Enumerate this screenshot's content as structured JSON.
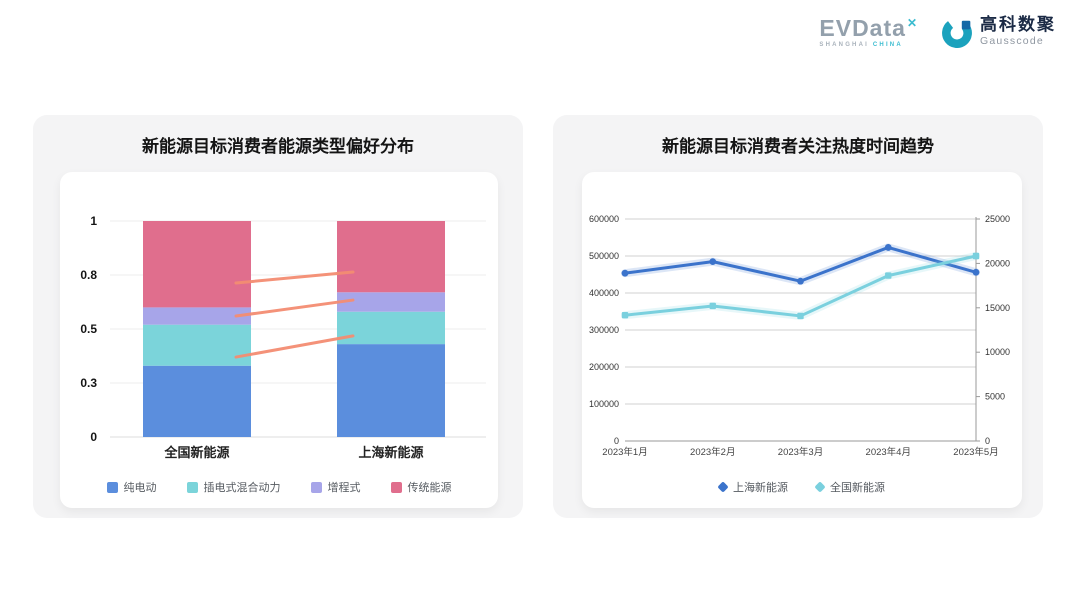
{
  "header": {
    "evdata": {
      "brand": "EVData",
      "mark": "✕",
      "tagline_left": "SHANGHAI",
      "tagline_right": "CHINA"
    },
    "gausscode": {
      "icon": "gausscode-g-icon",
      "title_cn": "高科数聚",
      "title_en": "Gausscode"
    }
  },
  "colors": {
    "card_background": "#f4f4f5",
    "inner_background": "#ffffff",
    "grid_line": "#ececec",
    "axis_line": "#9a9a9a",
    "connector": "#f48d72"
  },
  "chart_data": [
    {
      "type": "bar",
      "stacked": true,
      "title": "新能源目标消费者能源类型偏好分布",
      "categories": [
        "全国新能源",
        "上海新能源"
      ],
      "series": [
        {
          "name": "纯电动",
          "color": "#5b8edd",
          "values": [
            0.33,
            0.43
          ]
        },
        {
          "name": "插电式混合动力",
          "color": "#7bd4da",
          "values": [
            0.19,
            0.15
          ]
        },
        {
          "name": "增程式",
          "color": "#a7a5e9",
          "values": [
            0.08,
            0.09
          ]
        },
        {
          "name": "传统能源",
          "color": "#e06e8d",
          "values": [
            0.4,
            0.33
          ]
        }
      ],
      "ylim": [
        0,
        1
      ],
      "y_ticks": [
        {
          "label": "1",
          "v": 1
        },
        {
          "label": "0.8",
          "v": 0.75
        },
        {
          "label": "0.5",
          "v": 0.5
        },
        {
          "label": "0.3",
          "v": 0.25
        },
        {
          "label": "0",
          "v": 0
        }
      ],
      "connector_lines": {
        "color": "#f48d72",
        "segments": [
          {
            "from": 0.713,
            "to": 0.764
          },
          {
            "from": 0.56,
            "to": 0.634
          },
          {
            "from": 0.37,
            "to": 0.468
          }
        ]
      },
      "grid": true,
      "legend_position": "bottom"
    },
    {
      "type": "line",
      "title": "新能源目标消费者关注热度时间趋势",
      "x": [
        "2023年1月",
        "2023年2月",
        "2023年3月",
        "2023年4月",
        "2023年5月"
      ],
      "series": [
        {
          "name": "上海新能源",
          "color": "#3b73cb",
          "axis": "right",
          "marker": "circle",
          "values": [
            18900,
            20200,
            18000,
            21800,
            19000
          ]
        },
        {
          "name": "全国新能源",
          "color": "#7ad0de",
          "axis": "left",
          "marker": "square",
          "values": [
            340000,
            365000,
            338000,
            447000,
            500000
          ]
        }
      ],
      "left_axis": {
        "min": 0,
        "max": 600000,
        "ticks": [
          "0",
          "100000",
          "200000",
          "300000",
          "400000",
          "500000",
          "600000"
        ]
      },
      "right_axis": {
        "min": 0,
        "max": 25000,
        "ticks": [
          "0",
          "5000",
          "10000",
          "15000",
          "20000",
          "25000"
        ]
      },
      "grid": true,
      "legend_position": "bottom"
    }
  ]
}
